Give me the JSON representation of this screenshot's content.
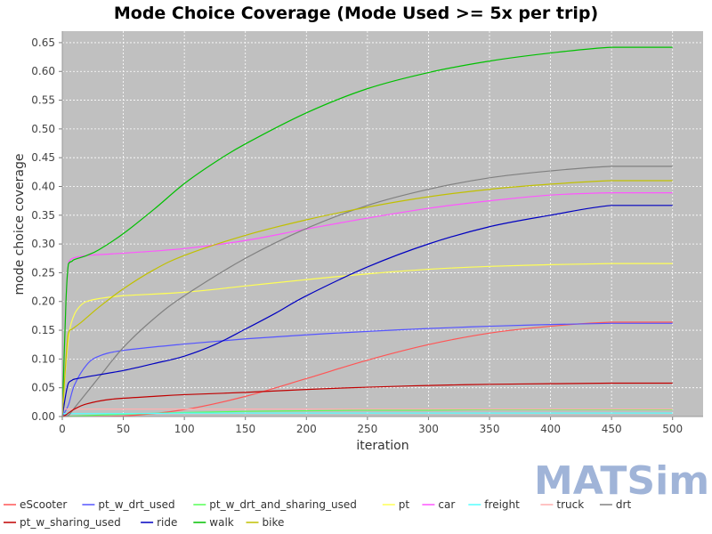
{
  "chart_data": {
    "type": "line",
    "title": "Mode Choice Coverage (Mode Used >= 5x per trip)",
    "xlabel": "iteration",
    "ylabel": "mode choice coverage",
    "xlim": [
      0,
      525
    ],
    "ylim": [
      0,
      0.67
    ],
    "xticks": [
      0,
      50,
      100,
      150,
      200,
      250,
      300,
      350,
      400,
      450,
      500
    ],
    "yticks": [
      "0.00",
      "0.05",
      "0.10",
      "0.15",
      "0.20",
      "0.25",
      "0.30",
      "0.35",
      "0.40",
      "0.45",
      "0.50",
      "0.55",
      "0.60",
      "0.65"
    ],
    "grid": true,
    "background": "#c0c0c0",
    "legend_position": "bottom",
    "series": [
      {
        "name": "eScooter",
        "color": "#ff5555",
        "x": [
          0,
          50,
          100,
          150,
          200,
          250,
          300,
          350,
          400,
          450,
          500
        ],
        "y": [
          0,
          0.001,
          0.012,
          0.035,
          0.066,
          0.098,
          0.125,
          0.145,
          0.157,
          0.164,
          0.164
        ]
      },
      {
        "name": "pt_w_drt_used",
        "color": "#5555ff",
        "x": [
          0,
          5,
          10,
          20,
          30,
          50,
          100,
          150,
          200,
          250,
          300,
          350,
          400,
          450,
          500
        ],
        "y": [
          0,
          0.02,
          0.055,
          0.09,
          0.105,
          0.115,
          0.126,
          0.135,
          0.142,
          0.148,
          0.153,
          0.157,
          0.16,
          0.162,
          0.162
        ]
      },
      {
        "name": "pt_w_drt_and_sharing_used",
        "color": "#55ff55",
        "x": [
          0,
          50,
          100,
          150,
          200,
          250,
          300,
          350,
          400,
          450,
          500
        ],
        "y": [
          0,
          0.004,
          0.007,
          0.009,
          0.01,
          0.011,
          0.011,
          0.012,
          0.012,
          0.012,
          0.012
        ]
      },
      {
        "name": "pt",
        "color": "#ffff55",
        "x": [
          0,
          3,
          6,
          10,
          15,
          20,
          30,
          50,
          100,
          150,
          200,
          250,
          300,
          350,
          400,
          450,
          500
        ],
        "y": [
          0,
          0.09,
          0.15,
          0.178,
          0.193,
          0.2,
          0.205,
          0.21,
          0.216,
          0.227,
          0.238,
          0.248,
          0.256,
          0.261,
          0.264,
          0.266,
          0.266
        ]
      },
      {
        "name": "car",
        "color": "#ff55ff",
        "x": [
          0,
          3,
          5,
          7,
          10,
          20,
          50,
          100,
          150,
          200,
          250,
          300,
          350,
          400,
          450,
          500
        ],
        "y": [
          0,
          0.2,
          0.265,
          0.273,
          0.276,
          0.28,
          0.284,
          0.292,
          0.306,
          0.326,
          0.345,
          0.362,
          0.375,
          0.385,
          0.389,
          0.389
        ]
      },
      {
        "name": "freight",
        "color": "#55ffff",
        "x": [
          0,
          50,
          100,
          150,
          200,
          250,
          300,
          350,
          400,
          450,
          500
        ],
        "y": [
          0.005,
          0.005,
          0.006,
          0.006,
          0.006,
          0.006,
          0.006,
          0.006,
          0.006,
          0.006,
          0.006
        ]
      },
      {
        "name": "truck",
        "color": "#ffafaf",
        "x": [
          0,
          50,
          100,
          150,
          200,
          250,
          300,
          350,
          400,
          450,
          500
        ],
        "y": [
          0.013,
          0.013,
          0.013,
          0.013,
          0.013,
          0.013,
          0.013,
          0.013,
          0.013,
          0.013,
          0.013
        ]
      },
      {
        "name": "drt",
        "color": "#808080",
        "x": [
          0,
          5,
          10,
          30,
          50,
          75,
          100,
          150,
          200,
          250,
          300,
          350,
          400,
          450,
          500
        ],
        "y": [
          0,
          0.002,
          0.015,
          0.068,
          0.12,
          0.17,
          0.21,
          0.275,
          0.327,
          0.367,
          0.395,
          0.415,
          0.427,
          0.435,
          0.435
        ]
      },
      {
        "name": "pt_w_sharing_used",
        "color": "#c00000",
        "x": [
          0,
          3,
          10,
          20,
          40,
          75,
          100,
          150,
          200,
          250,
          300,
          350,
          400,
          450,
          500
        ],
        "y": [
          0,
          0.003,
          0.013,
          0.022,
          0.03,
          0.035,
          0.038,
          0.042,
          0.047,
          0.051,
          0.054,
          0.056,
          0.057,
          0.058,
          0.058
        ]
      },
      {
        "name": "ride",
        "color": "#0000c0",
        "x": [
          0,
          3,
          5,
          8,
          10,
          20,
          50,
          75,
          100,
          125,
          150,
          175,
          200,
          250,
          300,
          350,
          400,
          450,
          500
        ],
        "y": [
          0,
          0.04,
          0.058,
          0.063,
          0.065,
          0.069,
          0.08,
          0.092,
          0.105,
          0.125,
          0.152,
          0.18,
          0.21,
          0.26,
          0.3,
          0.33,
          0.35,
          0.367,
          0.367
        ]
      },
      {
        "name": "walk",
        "color": "#00c000",
        "x": [
          0,
          3,
          5,
          8,
          10,
          20,
          30,
          50,
          75,
          100,
          125,
          150,
          200,
          250,
          300,
          350,
          400,
          450,
          500
        ],
        "y": [
          0,
          0.2,
          0.265,
          0.27,
          0.273,
          0.28,
          0.29,
          0.318,
          0.36,
          0.405,
          0.442,
          0.474,
          0.528,
          0.57,
          0.598,
          0.618,
          0.632,
          0.642,
          0.642
        ]
      },
      {
        "name": "bike",
        "color": "#c0c000",
        "x": [
          0,
          3,
          5,
          8,
          10,
          15,
          20,
          30,
          50,
          75,
          100,
          150,
          200,
          250,
          300,
          350,
          400,
          450,
          500
        ],
        "y": [
          0,
          0.1,
          0.145,
          0.152,
          0.155,
          0.163,
          0.172,
          0.19,
          0.222,
          0.255,
          0.28,
          0.315,
          0.342,
          0.364,
          0.382,
          0.395,
          0.404,
          0.41,
          0.41
        ]
      }
    ]
  },
  "logo": {
    "text": "MATSim",
    "color": "#a0b4d8"
  }
}
